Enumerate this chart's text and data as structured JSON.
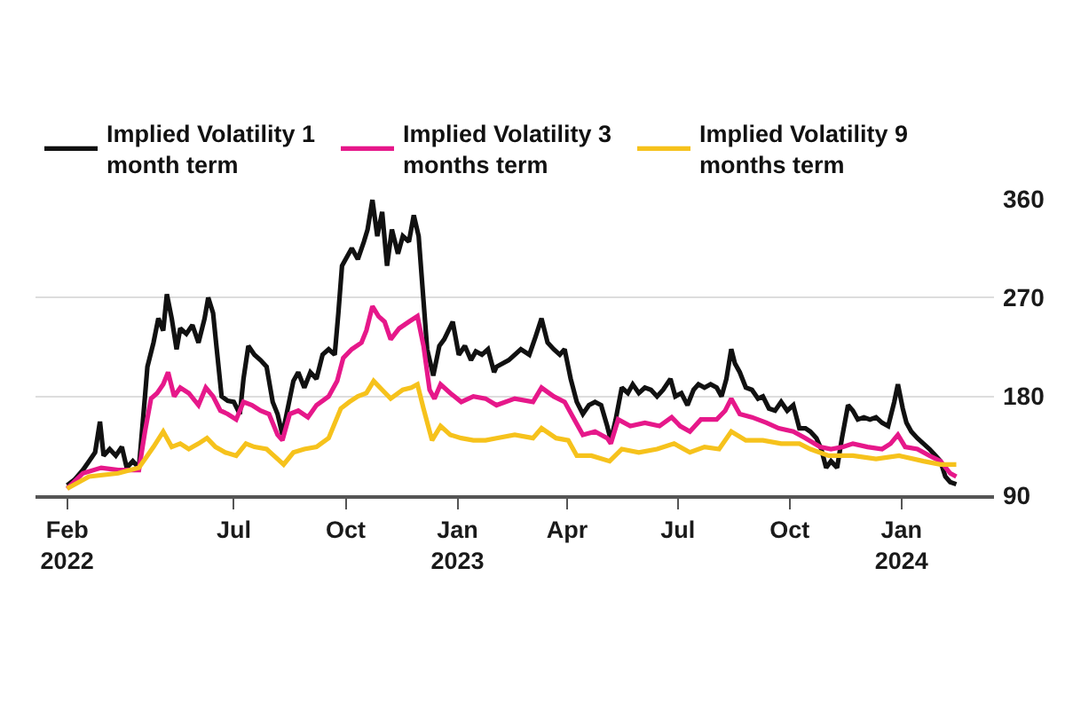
{
  "chart_data": {
    "type": "line",
    "series": [
      {
        "name": "Implied Volatility 1 month term",
        "color": "#111111",
        "x": [
          "2022-02-14",
          "2022-02-20",
          "2022-02-27",
          "2022-03-04",
          "2022-03-09",
          "2022-03-13",
          "2022-03-16",
          "2022-03-21",
          "2022-03-26",
          "2022-03-31",
          "2022-04-04",
          "2022-04-09",
          "2022-04-14",
          "2022-04-19",
          "2022-04-21",
          "2022-04-26",
          "2022-04-30",
          "2022-05-04",
          "2022-05-07",
          "2022-05-11",
          "2022-05-15",
          "2022-05-18",
          "2022-05-23",
          "2022-05-28",
          "2022-06-02",
          "2022-06-07",
          "2022-06-10",
          "2022-06-14",
          "2022-06-17",
          "2022-06-21",
          "2022-06-26",
          "2022-07-01",
          "2022-07-06",
          "2022-07-09",
          "2022-07-13",
          "2022-07-18",
          "2022-07-23",
          "2022-07-28",
          "2022-08-02",
          "2022-08-06",
          "2022-08-10",
          "2022-08-14",
          "2022-08-19",
          "2022-08-23",
          "2022-08-28",
          "2022-09-02",
          "2022-09-07",
          "2022-09-12",
          "2022-09-17",
          "2022-09-22",
          "2022-09-25",
          "2022-09-28",
          "2022-10-01",
          "2022-10-06",
          "2022-10-11",
          "2022-10-16",
          "2022-10-19",
          "2022-10-23",
          "2022-10-27",
          "2022-10-31",
          "2022-11-04",
          "2022-11-08",
          "2022-11-13",
          "2022-11-17",
          "2022-11-22",
          "2022-11-26",
          "2022-11-30",
          "2022-12-04",
          "2022-12-07",
          "2022-12-12",
          "2022-12-17",
          "2022-12-21",
          "2022-12-28",
          "2023-01-02",
          "2023-01-07",
          "2023-01-12",
          "2023-01-16",
          "2023-01-21",
          "2023-01-26",
          "2023-01-31",
          "2023-02-02",
          "2023-02-12",
          "2023-02-22",
          "2023-03-01",
          "2023-03-06",
          "2023-03-11",
          "2023-03-16",
          "2023-03-21",
          "2023-03-26",
          "2023-03-30",
          "2023-04-04",
          "2023-04-09",
          "2023-04-14",
          "2023-04-19",
          "2023-04-24",
          "2023-04-29",
          "2023-05-04",
          "2023-05-07",
          "2023-05-11",
          "2023-05-16",
          "2023-05-21",
          "2023-05-25",
          "2023-05-30",
          "2023-06-04",
          "2023-06-09",
          "2023-06-14",
          "2023-06-19",
          "2023-06-25",
          "2023-06-29",
          "2023-07-04",
          "2023-07-09",
          "2023-07-14",
          "2023-07-18",
          "2023-07-23",
          "2023-07-28",
          "2023-08-02",
          "2023-08-06",
          "2023-08-10",
          "2023-08-14",
          "2023-08-17",
          "2023-08-21",
          "2023-08-26",
          "2023-08-31",
          "2023-09-05",
          "2023-09-09",
          "2023-09-14",
          "2023-09-19",
          "2023-09-24",
          "2023-09-29",
          "2023-10-04",
          "2023-10-09",
          "2023-10-14",
          "2023-10-18",
          "2023-10-23",
          "2023-10-27",
          "2023-10-31",
          "2023-11-04",
          "2023-11-09",
          "2023-11-13",
          "2023-11-18",
          "2023-11-22",
          "2023-11-26",
          "2023-12-01",
          "2023-12-06",
          "2023-12-11",
          "2023-12-16",
          "2023-12-21",
          "2023-12-26",
          "2023-12-29",
          "2024-01-02",
          "2024-01-05",
          "2024-01-09",
          "2024-01-14",
          "2024-01-19",
          "2024-01-24",
          "2024-01-29",
          "2024-02-02",
          "2024-02-06",
          "2024-02-10",
          "2024-02-15"
        ],
        "values": [
          99,
          104,
          113,
          121,
          129,
          157,
          126,
          132,
          126,
          134,
          115,
          121,
          115,
          180,
          207,
          229,
          251,
          240,
          273,
          251,
          223,
          242,
          237,
          245,
          229,
          251,
          270,
          256,
          223,
          180,
          176,
          175,
          164,
          196,
          226,
          218,
          213,
          207,
          175,
          164,
          145,
          167,
          194,
          202,
          188,
          202,
          196,
          218,
          223,
          218,
          256,
          299,
          305,
          315,
          305,
          321,
          332,
          359,
          326,
          348,
          299,
          332,
          310,
          326,
          321,
          345,
          326,
          267,
          223,
          199,
          226,
          232,
          248,
          218,
          226,
          213,
          221,
          218,
          223,
          202,
          207,
          213,
          223,
          218,
          234,
          251,
          229,
          223,
          218,
          223,
          196,
          175,
          164,
          172,
          175,
          172,
          153,
          140,
          159,
          188,
          183,
          191,
          183,
          188,
          186,
          180,
          186,
          196,
          180,
          183,
          172,
          186,
          191,
          188,
          191,
          188,
          180,
          196,
          223,
          210,
          202,
          188,
          186,
          178,
          180,
          169,
          167,
          175,
          167,
          172,
          151,
          151,
          148,
          142,
          132,
          115,
          121,
          115,
          142,
          172,
          167,
          159,
          161,
          159,
          161,
          156,
          153,
          175,
          191,
          169,
          156,
          148,
          142,
          137,
          132,
          126,
          121,
          107,
          102,
          100
        ]
      },
      {
        "name": "Implied Volatility 3 months term",
        "color": "#e6188a",
        "x": [
          "2022-02-14",
          "2022-02-27",
          "2022-03-14",
          "2022-03-28",
          "2022-04-14",
          "2022-04-19",
          "2022-04-24",
          "2022-04-29",
          "2022-05-04",
          "2022-05-08",
          "2022-05-13",
          "2022-05-18",
          "2022-05-25",
          "2022-06-02",
          "2022-06-08",
          "2022-06-14",
          "2022-06-20",
          "2022-06-26",
          "2022-07-03",
          "2022-07-09",
          "2022-07-16",
          "2022-07-23",
          "2022-07-30",
          "2022-08-06",
          "2022-08-10",
          "2022-08-16",
          "2022-08-23",
          "2022-08-31",
          "2022-09-07",
          "2022-09-17",
          "2022-09-24",
          "2022-09-29",
          "2022-10-06",
          "2022-10-14",
          "2022-10-18",
          "2022-10-23",
          "2022-10-28",
          "2022-11-02",
          "2022-11-07",
          "2022-11-14",
          "2022-11-22",
          "2022-11-29",
          "2022-12-04",
          "2022-12-09",
          "2022-12-13",
          "2022-12-18",
          "2022-12-26",
          "2023-01-04",
          "2023-01-14",
          "2023-01-24",
          "2023-02-02",
          "2023-02-17",
          "2023-03-04",
          "2023-03-11",
          "2023-03-21",
          "2023-03-30",
          "2023-04-07",
          "2023-04-14",
          "2023-04-24",
          "2023-05-04",
          "2023-05-07",
          "2023-05-13",
          "2023-05-23",
          "2023-06-04",
          "2023-06-16",
          "2023-06-26",
          "2023-07-03",
          "2023-07-11",
          "2023-07-20",
          "2023-08-02",
          "2023-08-09",
          "2023-08-14",
          "2023-08-21",
          "2023-08-31",
          "2023-09-12",
          "2023-09-22",
          "2023-10-04",
          "2023-10-14",
          "2023-10-26",
          "2023-11-04",
          "2023-11-14",
          "2023-11-22",
          "2023-12-04",
          "2023-12-16",
          "2023-12-23",
          "2023-12-29",
          "2024-01-04",
          "2024-01-14",
          "2024-01-24",
          "2024-02-02",
          "2024-02-10",
          "2024-02-15"
        ],
        "values": [
          96,
          110,
          115,
          113,
          113,
          148,
          178,
          183,
          191,
          202,
          180,
          188,
          183,
          172,
          188,
          180,
          167,
          164,
          159,
          175,
          172,
          167,
          164,
          145,
          140,
          164,
          167,
          161,
          172,
          180,
          194,
          215,
          223,
          229,
          240,
          262,
          253,
          248,
          232,
          242,
          248,
          253,
          226,
          186,
          178,
          191,
          183,
          175,
          180,
          178,
          172,
          178,
          175,
          188,
          180,
          175,
          159,
          145,
          148,
          142,
          137,
          159,
          153,
          156,
          153,
          161,
          153,
          148,
          159,
          159,
          167,
          178,
          164,
          161,
          156,
          151,
          148,
          142,
          134,
          132,
          134,
          137,
          134,
          132,
          137,
          145,
          134,
          132,
          126,
          121,
          110,
          107
        ]
      },
      {
        "name": "Implied Volatility 9 months term",
        "color": "#f6c21c",
        "x": [
          "2022-02-14",
          "2022-03-04",
          "2022-03-28",
          "2022-04-14",
          "2022-04-19",
          "2022-04-26",
          "2022-05-04",
          "2022-05-11",
          "2022-05-18",
          "2022-05-25",
          "2022-06-02",
          "2022-06-09",
          "2022-06-16",
          "2022-06-24",
          "2022-07-03",
          "2022-07-11",
          "2022-07-18",
          "2022-07-28",
          "2022-08-06",
          "2022-08-11",
          "2022-08-19",
          "2022-08-28",
          "2022-09-07",
          "2022-09-17",
          "2022-09-27",
          "2022-10-04",
          "2022-10-11",
          "2022-10-18",
          "2022-10-24",
          "2022-10-31",
          "2022-11-07",
          "2022-11-17",
          "2022-11-24",
          "2022-11-29",
          "2022-12-04",
          "2022-12-11",
          "2022-12-18",
          "2022-12-26",
          "2023-01-04",
          "2023-01-14",
          "2023-01-24",
          "2023-02-02",
          "2023-02-17",
          "2023-03-04",
          "2023-03-11",
          "2023-03-23",
          "2023-04-02",
          "2023-04-09",
          "2023-04-21",
          "2023-05-06",
          "2023-05-16",
          "2023-05-30",
          "2023-06-14",
          "2023-06-28",
          "2023-07-11",
          "2023-07-23",
          "2023-08-04",
          "2023-08-14",
          "2023-08-26",
          "2023-09-09",
          "2023-09-24",
          "2023-10-09",
          "2023-10-18",
          "2023-11-02",
          "2023-11-22",
          "2023-12-11",
          "2023-12-30",
          "2024-01-19",
          "2024-02-02",
          "2024-02-15"
        ],
        "values": [
          96,
          107,
          110,
          115,
          123,
          134,
          148,
          134,
          137,
          132,
          137,
          142,
          134,
          129,
          126,
          137,
          134,
          132,
          123,
          118,
          129,
          132,
          134,
          142,
          169,
          175,
          180,
          183,
          194,
          186,
          178,
          186,
          188,
          191,
          169,
          140,
          153,
          145,
          142,
          140,
          140,
          142,
          145,
          142,
          151,
          142,
          140,
          126,
          126,
          121,
          132,
          129,
          132,
          137,
          129,
          134,
          132,
          148,
          140,
          140,
          137,
          137,
          132,
          126,
          126,
          123,
          126,
          121,
          118,
          118
        ]
      }
    ],
    "xlim": [
      "2022-01-19",
      "2024-03-17"
    ],
    "xticks": [
      {
        "value": "2022-02-14",
        "label": "Feb\n2022"
      },
      {
        "value": "2022-07-01",
        "label": "Jul"
      },
      {
        "value": "2022-10-01",
        "label": "Oct"
      },
      {
        "value": "2023-01-01",
        "label": "Jan\n2023"
      },
      {
        "value": "2023-04-01",
        "label": "Apr"
      },
      {
        "value": "2023-07-01",
        "label": "Jul"
      },
      {
        "value": "2023-10-01",
        "label": "Oct"
      },
      {
        "value": "2024-01-01",
        "label": "Jan\n2024"
      }
    ],
    "ylim": [
      90,
      360
    ],
    "yticks": [
      90,
      180,
      270,
      360
    ],
    "grid": "y",
    "legend": "top"
  }
}
